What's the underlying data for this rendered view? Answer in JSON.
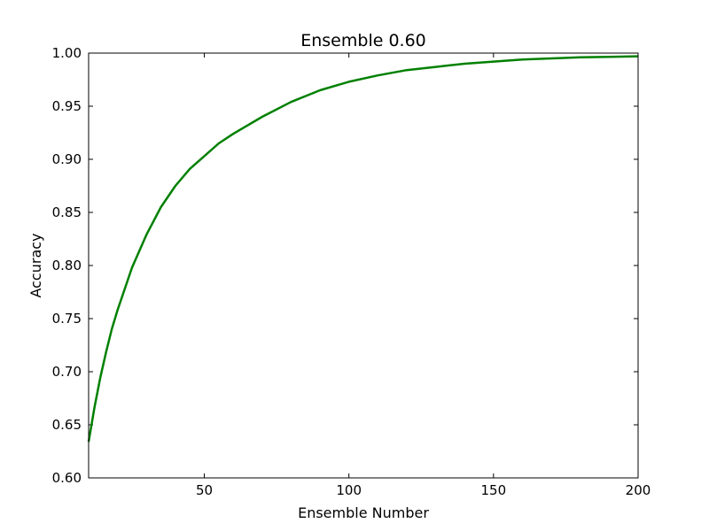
{
  "chart_data": {
    "type": "line",
    "title": "Ensemble 0.60",
    "xlabel": "Ensemble Number",
    "ylabel": "Accuracy",
    "xlim": [
      10,
      200
    ],
    "ylim": [
      0.6,
      1.0
    ],
    "xticks": [
      50,
      100,
      150,
      200
    ],
    "yticks": [
      "0.60",
      "0.65",
      "0.70",
      "0.75",
      "0.80",
      "0.85",
      "0.90",
      "0.95",
      "1.00"
    ],
    "grid": false,
    "legend": "none",
    "series": [
      {
        "color": "#008000",
        "x": [
          10,
          12,
          14,
          16,
          18,
          20,
          25,
          30,
          35,
          40,
          45,
          50,
          55,
          60,
          70,
          80,
          90,
          100,
          110,
          120,
          130,
          140,
          150,
          160,
          170,
          180,
          190,
          200
        ],
        "y": [
          0.634,
          0.666,
          0.694,
          0.718,
          0.74,
          0.758,
          0.798,
          0.829,
          0.855,
          0.875,
          0.891,
          0.903,
          0.915,
          0.924,
          0.94,
          0.954,
          0.965,
          0.973,
          0.979,
          0.984,
          0.987,
          0.99,
          0.992,
          0.994,
          0.995,
          0.996,
          0.9965,
          0.997
        ]
      }
    ]
  }
}
